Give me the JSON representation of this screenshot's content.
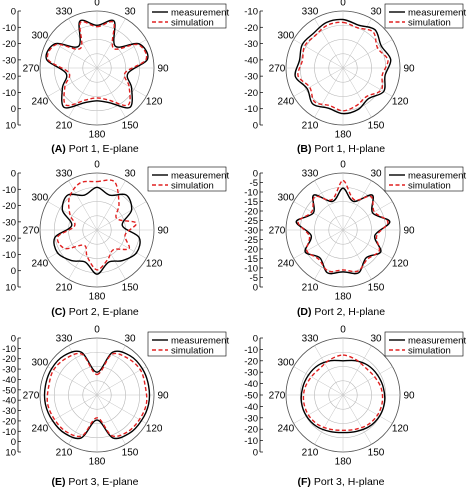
{
  "chart_data": [
    {
      "type": "polar-line",
      "panel_label": "(A)",
      "panel_title": "Port 1, E-plane",
      "angle_ticks": [
        "0",
        "30",
        "90",
        "120",
        "150",
        "180",
        "210",
        "240",
        "270",
        "300",
        "330"
      ],
      "radial_ticks": [
        "0",
        "-10",
        "-20",
        "-30",
        "-20",
        "-10",
        "0",
        "10"
      ],
      "radial_range": [
        -40,
        0
      ],
      "legend": {
        "position": "top-right",
        "entries": [
          "measurement",
          "simulation"
        ]
      },
      "series": [
        {
          "name": "measurement",
          "style": "solid",
          "color": "#000000",
          "angles": [
            0,
            20,
            40,
            60,
            80,
            100,
            120,
            140,
            160,
            180,
            200,
            220,
            240,
            260,
            280,
            300,
            320,
            340
          ],
          "values": [
            -10,
            -5,
            -20,
            -6,
            -4,
            -18,
            -12,
            -4,
            -14,
            -17,
            -14,
            -4,
            -12,
            -18,
            -4,
            -6,
            -20,
            -5
          ]
        },
        {
          "name": "simulation",
          "style": "dashed",
          "color": "#e02020",
          "angles": [
            0,
            20,
            40,
            60,
            80,
            100,
            120,
            140,
            160,
            180,
            200,
            220,
            240,
            260,
            280,
            300,
            320,
            340
          ],
          "values": [
            -11,
            -6,
            -22,
            -7,
            -5,
            -20,
            -14,
            -6,
            -16,
            -19,
            -16,
            -6,
            -14,
            -20,
            -5,
            -7,
            -22,
            -6
          ]
        }
      ]
    },
    {
      "type": "polar-line",
      "panel_label": "(B)",
      "panel_title": "Port 1, H-plane",
      "angle_ticks": [
        "0",
        "30",
        "90",
        "120",
        "150",
        "180",
        "210",
        "240",
        "270",
        "300",
        "330"
      ],
      "radial_ticks": [
        "-10",
        "-20",
        "-30",
        "-40",
        "-30",
        "-20",
        "-10",
        "0"
      ],
      "radial_range": [
        -40,
        0
      ],
      "legend": {
        "position": "top-right",
        "entries": [
          "measurement",
          "simulation"
        ]
      },
      "series": [
        {
          "name": "measurement",
          "style": "solid",
          "color": "#000000",
          "angles": [
            0,
            20,
            40,
            60,
            80,
            100,
            120,
            140,
            160,
            180,
            200,
            220,
            240,
            260,
            280,
            300,
            320,
            340
          ],
          "values": [
            -6,
            -8,
            -5,
            -9,
            -6,
            -10,
            -7,
            -12,
            -9,
            -8,
            -10,
            -7,
            -11,
            -6,
            -9,
            -7,
            -8,
            -6
          ]
        },
        {
          "name": "simulation",
          "style": "dashed",
          "color": "#e02020",
          "angles": [
            0,
            20,
            40,
            60,
            80,
            100,
            120,
            140,
            160,
            180,
            200,
            220,
            240,
            260,
            280,
            300,
            320,
            340
          ],
          "values": [
            -8,
            -10,
            -7,
            -12,
            -8,
            -12,
            -9,
            -14,
            -12,
            -10,
            -12,
            -9,
            -13,
            -8,
            -11,
            -9,
            -10,
            -8
          ]
        }
      ]
    },
    {
      "type": "polar-line",
      "panel_label": "(C)",
      "panel_title": "Port 2, E-plane",
      "angle_ticks": [
        "0",
        "30",
        "90",
        "120",
        "150",
        "180",
        "210",
        "240",
        "270",
        "300",
        "330"
      ],
      "radial_ticks": [
        "0",
        "-10",
        "-20",
        "-30",
        "-20",
        "-10",
        "0",
        "10"
      ],
      "radial_range": [
        -40,
        0
      ],
      "legend": {
        "position": "top-right",
        "entries": [
          "measurement",
          "simulation"
        ]
      },
      "series": [
        {
          "name": "measurement",
          "style": "solid",
          "color": "#000000",
          "angles": [
            0,
            20,
            40,
            60,
            80,
            100,
            120,
            140,
            160,
            180,
            200,
            220,
            240,
            260,
            280,
            300,
            320,
            340
          ],
          "values": [
            -10,
            -14,
            -8,
            -12,
            -22,
            -10,
            -8,
            -12,
            -16,
            -9,
            -16,
            -12,
            -8,
            -10,
            -22,
            -12,
            -8,
            -14
          ]
        },
        {
          "name": "simulation",
          "style": "dashed",
          "color": "#e02020",
          "angles": [
            0,
            20,
            40,
            60,
            80,
            100,
            120,
            140,
            160,
            180,
            200,
            220,
            240,
            260,
            280,
            300,
            320,
            340
          ],
          "values": [
            -6,
            -4,
            -16,
            -24,
            -12,
            -20,
            -14,
            -22,
            -18,
            -12,
            -20,
            -26,
            -14,
            -12,
            -24,
            -18,
            -10,
            -5
          ]
        }
      ]
    },
    {
      "type": "polar-line",
      "panel_label": "(D)",
      "panel_title": "Port 2, H-plane",
      "angle_ticks": [
        "0",
        "30",
        "90",
        "120",
        "150",
        "180",
        "210",
        "240",
        "270",
        "300",
        "330"
      ],
      "radial_ticks": [
        "0",
        "-5",
        "-10",
        "-15",
        "-20",
        "-25",
        "-30",
        "-25",
        "-20",
        "-15",
        "-10",
        "-5",
        "0"
      ],
      "radial_range": [
        -30,
        0
      ],
      "legend": {
        "position": "top-right",
        "entries": [
          "measurement",
          "simulation"
        ]
      },
      "series": [
        {
          "name": "measurement",
          "style": "solid",
          "color": "#000000",
          "angles": [
            0,
            20,
            40,
            60,
            80,
            100,
            120,
            140,
            160,
            180,
            200,
            220,
            240,
            260,
            280,
            300,
            320,
            340
          ],
          "values": [
            -8,
            -14,
            -6,
            -12,
            -5,
            -13,
            -7,
            -11,
            -6,
            -8,
            -6,
            -11,
            -7,
            -13,
            -5,
            -12,
            -6,
            -14
          ]
        },
        {
          "name": "simulation",
          "style": "dashed",
          "color": "#e02020",
          "angles": [
            0,
            20,
            40,
            60,
            80,
            100,
            120,
            140,
            160,
            180,
            200,
            220,
            240,
            260,
            280,
            300,
            320,
            340
          ],
          "values": [
            -4,
            -13,
            -7,
            -11,
            -6,
            -12,
            -8,
            -10,
            -7,
            -9,
            -7,
            -10,
            -8,
            -12,
            -6,
            -11,
            -7,
            -13
          ]
        }
      ]
    },
    {
      "type": "polar-line",
      "panel_label": "(E)",
      "panel_title": "Port 3, E-plane",
      "angle_ticks": [
        "0",
        "30",
        "90",
        "120",
        "150",
        "180",
        "210",
        "240",
        "270",
        "300",
        "330"
      ],
      "radial_ticks": [
        "0",
        "-10",
        "-20",
        "-30",
        "-40",
        "-50",
        "-40",
        "-30",
        "-20",
        "-10",
        "0",
        "10"
      ],
      "radial_range": [
        -50,
        0
      ],
      "legend": {
        "position": "top-right",
        "entries": [
          "measurement",
          "simulation"
        ]
      },
      "series": [
        {
          "name": "measurement",
          "style": "solid",
          "color": "#000000",
          "angles": [
            0,
            20,
            40,
            60,
            80,
            100,
            120,
            140,
            160,
            180,
            200,
            220,
            240,
            260,
            280,
            300,
            320,
            340
          ],
          "values": [
            -30,
            -10,
            -5,
            -4,
            -4,
            -4,
            -5,
            -6,
            -10,
            -28,
            -10,
            -6,
            -5,
            -4,
            -4,
            -4,
            -5,
            -10
          ]
        },
        {
          "name": "simulation",
          "style": "dashed",
          "color": "#e02020",
          "angles": [
            0,
            20,
            40,
            60,
            80,
            100,
            120,
            140,
            160,
            180,
            200,
            220,
            240,
            260,
            280,
            300,
            320,
            340
          ],
          "values": [
            -32,
            -12,
            -8,
            -6,
            -7,
            -6,
            -7,
            -8,
            -12,
            -30,
            -12,
            -8,
            -7,
            -6,
            -7,
            -6,
            -8,
            -12
          ]
        }
      ]
    },
    {
      "type": "polar-line",
      "panel_label": "(F)",
      "panel_title": "Port 3, H-plane",
      "angle_ticks": [
        "0",
        "30",
        "90",
        "120",
        "150",
        "180",
        "210",
        "240",
        "270",
        "300",
        "330"
      ],
      "radial_ticks": [
        "0",
        "-10",
        "-20",
        "-30",
        "-40",
        "-50",
        "-40",
        "-30",
        "-20",
        "-10",
        "0"
      ],
      "radial_range": [
        -50,
        0
      ],
      "legend": {
        "position": "top-right",
        "entries": [
          "measurement",
          "simulation"
        ]
      },
      "series": [
        {
          "name": "measurement",
          "style": "solid",
          "color": "#000000",
          "angles": [
            0,
            20,
            40,
            60,
            80,
            100,
            120,
            140,
            160,
            180,
            200,
            220,
            240,
            260,
            280,
            300,
            320,
            340
          ],
          "values": [
            -20,
            -18,
            -16,
            -15,
            -14,
            -13,
            -13,
            -14,
            -16,
            -17,
            -16,
            -14,
            -13,
            -13,
            -14,
            -15,
            -16,
            -18
          ]
        },
        {
          "name": "simulation",
          "style": "dashed",
          "color": "#e02020",
          "angles": [
            0,
            20,
            40,
            60,
            80,
            100,
            120,
            140,
            160,
            180,
            200,
            220,
            240,
            260,
            280,
            300,
            320,
            340
          ],
          "values": [
            -15,
            -17,
            -19,
            -18,
            -16,
            -15,
            -15,
            -16,
            -18,
            -19,
            -18,
            -16,
            -15,
            -15,
            -16,
            -18,
            -19,
            -17
          ]
        }
      ]
    }
  ]
}
